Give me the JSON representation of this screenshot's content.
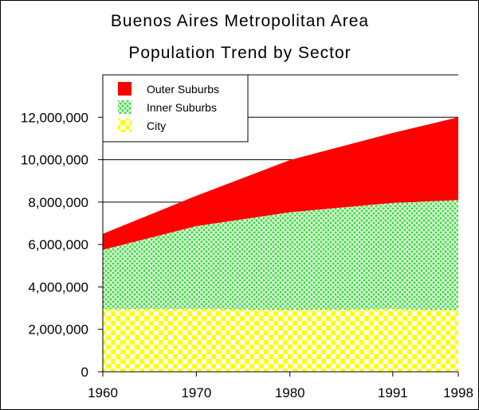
{
  "chart_data": {
    "type": "area",
    "stacked": true,
    "title": [
      "Buenos Aires Metropolitan Area",
      "Population Trend by Sector"
    ],
    "x": [
      1960,
      1970,
      1980,
      1991,
      1998
    ],
    "x_tick_labels": [
      "1960",
      "1970",
      "1980",
      "1991",
      "1998"
    ],
    "y_tick_labels": [
      "0",
      "2,000,000",
      "4,000,000",
      "6,000,000",
      "8,000,000",
      "10,000,000",
      "12,000,000"
    ],
    "ylim": [
      0,
      14000000
    ],
    "grid": "horizontal",
    "legend_position": "top-left",
    "series": [
      {
        "name": "City",
        "values": [
          2950000,
          2970000,
          2920000,
          2960000,
          2900000
        ],
        "color": "#ffff00",
        "pattern": "checker"
      },
      {
        "name": "Inner Suburbs",
        "values": [
          2800000,
          3900000,
          4600000,
          5000000,
          5200000
        ],
        "color": "#44dd44",
        "pattern": "crosshatch"
      },
      {
        "name": "Outer Suburbs",
        "values": [
          750000,
          1430000,
          2460000,
          3300000,
          3900000
        ],
        "color": "#ff0000",
        "pattern": "solid"
      }
    ],
    "legend": [
      "Outer Suburbs",
      "Inner Suburbs",
      "City"
    ]
  }
}
